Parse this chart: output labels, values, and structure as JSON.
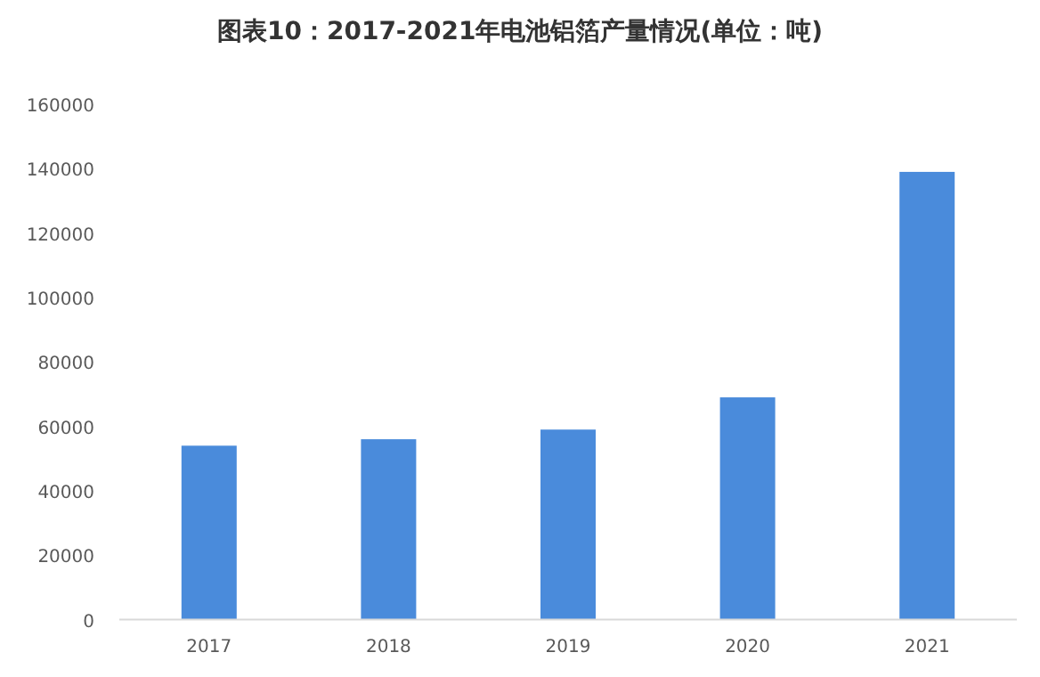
{
  "chart_data": {
    "type": "bar",
    "title": "图表10：2017-2021年电池铝箔产量情况(单位：吨)",
    "categories": [
      "2017",
      "2018",
      "2019",
      "2020",
      "2021"
    ],
    "values": [
      54000,
      56000,
      59000,
      69000,
      139000
    ],
    "color": "#4a8bdb",
    "ylim": [
      0,
      160000
    ],
    "yticks": [
      0,
      20000,
      40000,
      60000,
      80000,
      100000,
      120000,
      140000,
      160000
    ],
    "grid": false
  }
}
